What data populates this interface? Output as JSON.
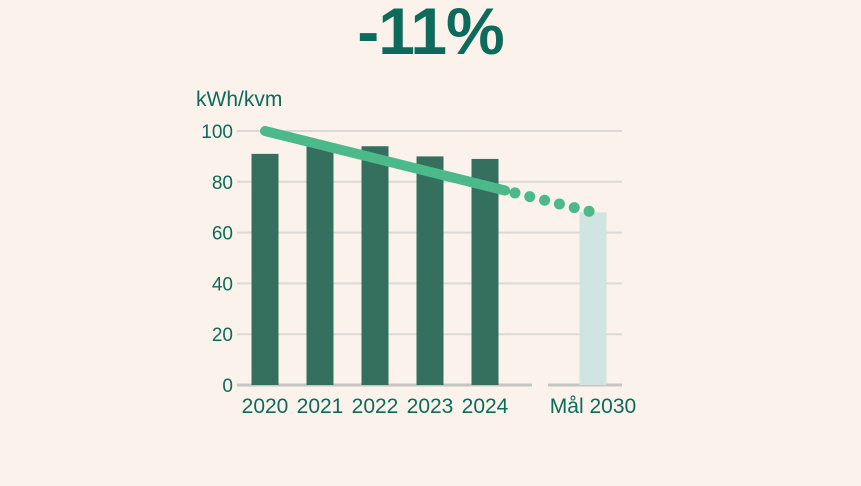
{
  "title": "-11%",
  "chart_data": {
    "type": "bar",
    "title": "-11%",
    "unit_label": "kWh/kvm",
    "categories": [
      "2020",
      "2021",
      "2022",
      "2023",
      "2024",
      "Mål 2030"
    ],
    "series": [
      {
        "name": "kWh/kvm",
        "values": [
          91,
          94,
          94,
          90,
          89,
          68
        ]
      }
    ],
    "target_category": "Mål 2030",
    "goal_line": {
      "from_category": "2020",
      "from_value": 100,
      "to_category": "Mål 2030",
      "to_value": 68,
      "solid_fraction": 0.732,
      "dot_count": 6
    },
    "ylim": [
      0,
      100
    ],
    "yticks": [
      0,
      20,
      40,
      60,
      80,
      100
    ],
    "grid": true,
    "legend": false,
    "colors": {
      "background": "#FAF2EB",
      "bar": "#35705F",
      "target_bar": "#D0E4E1",
      "goal_line": "#4CB98A",
      "gridline": "#DBD9D6",
      "axis_line": "#C7C5C2",
      "text": "#0E6A5A"
    }
  }
}
